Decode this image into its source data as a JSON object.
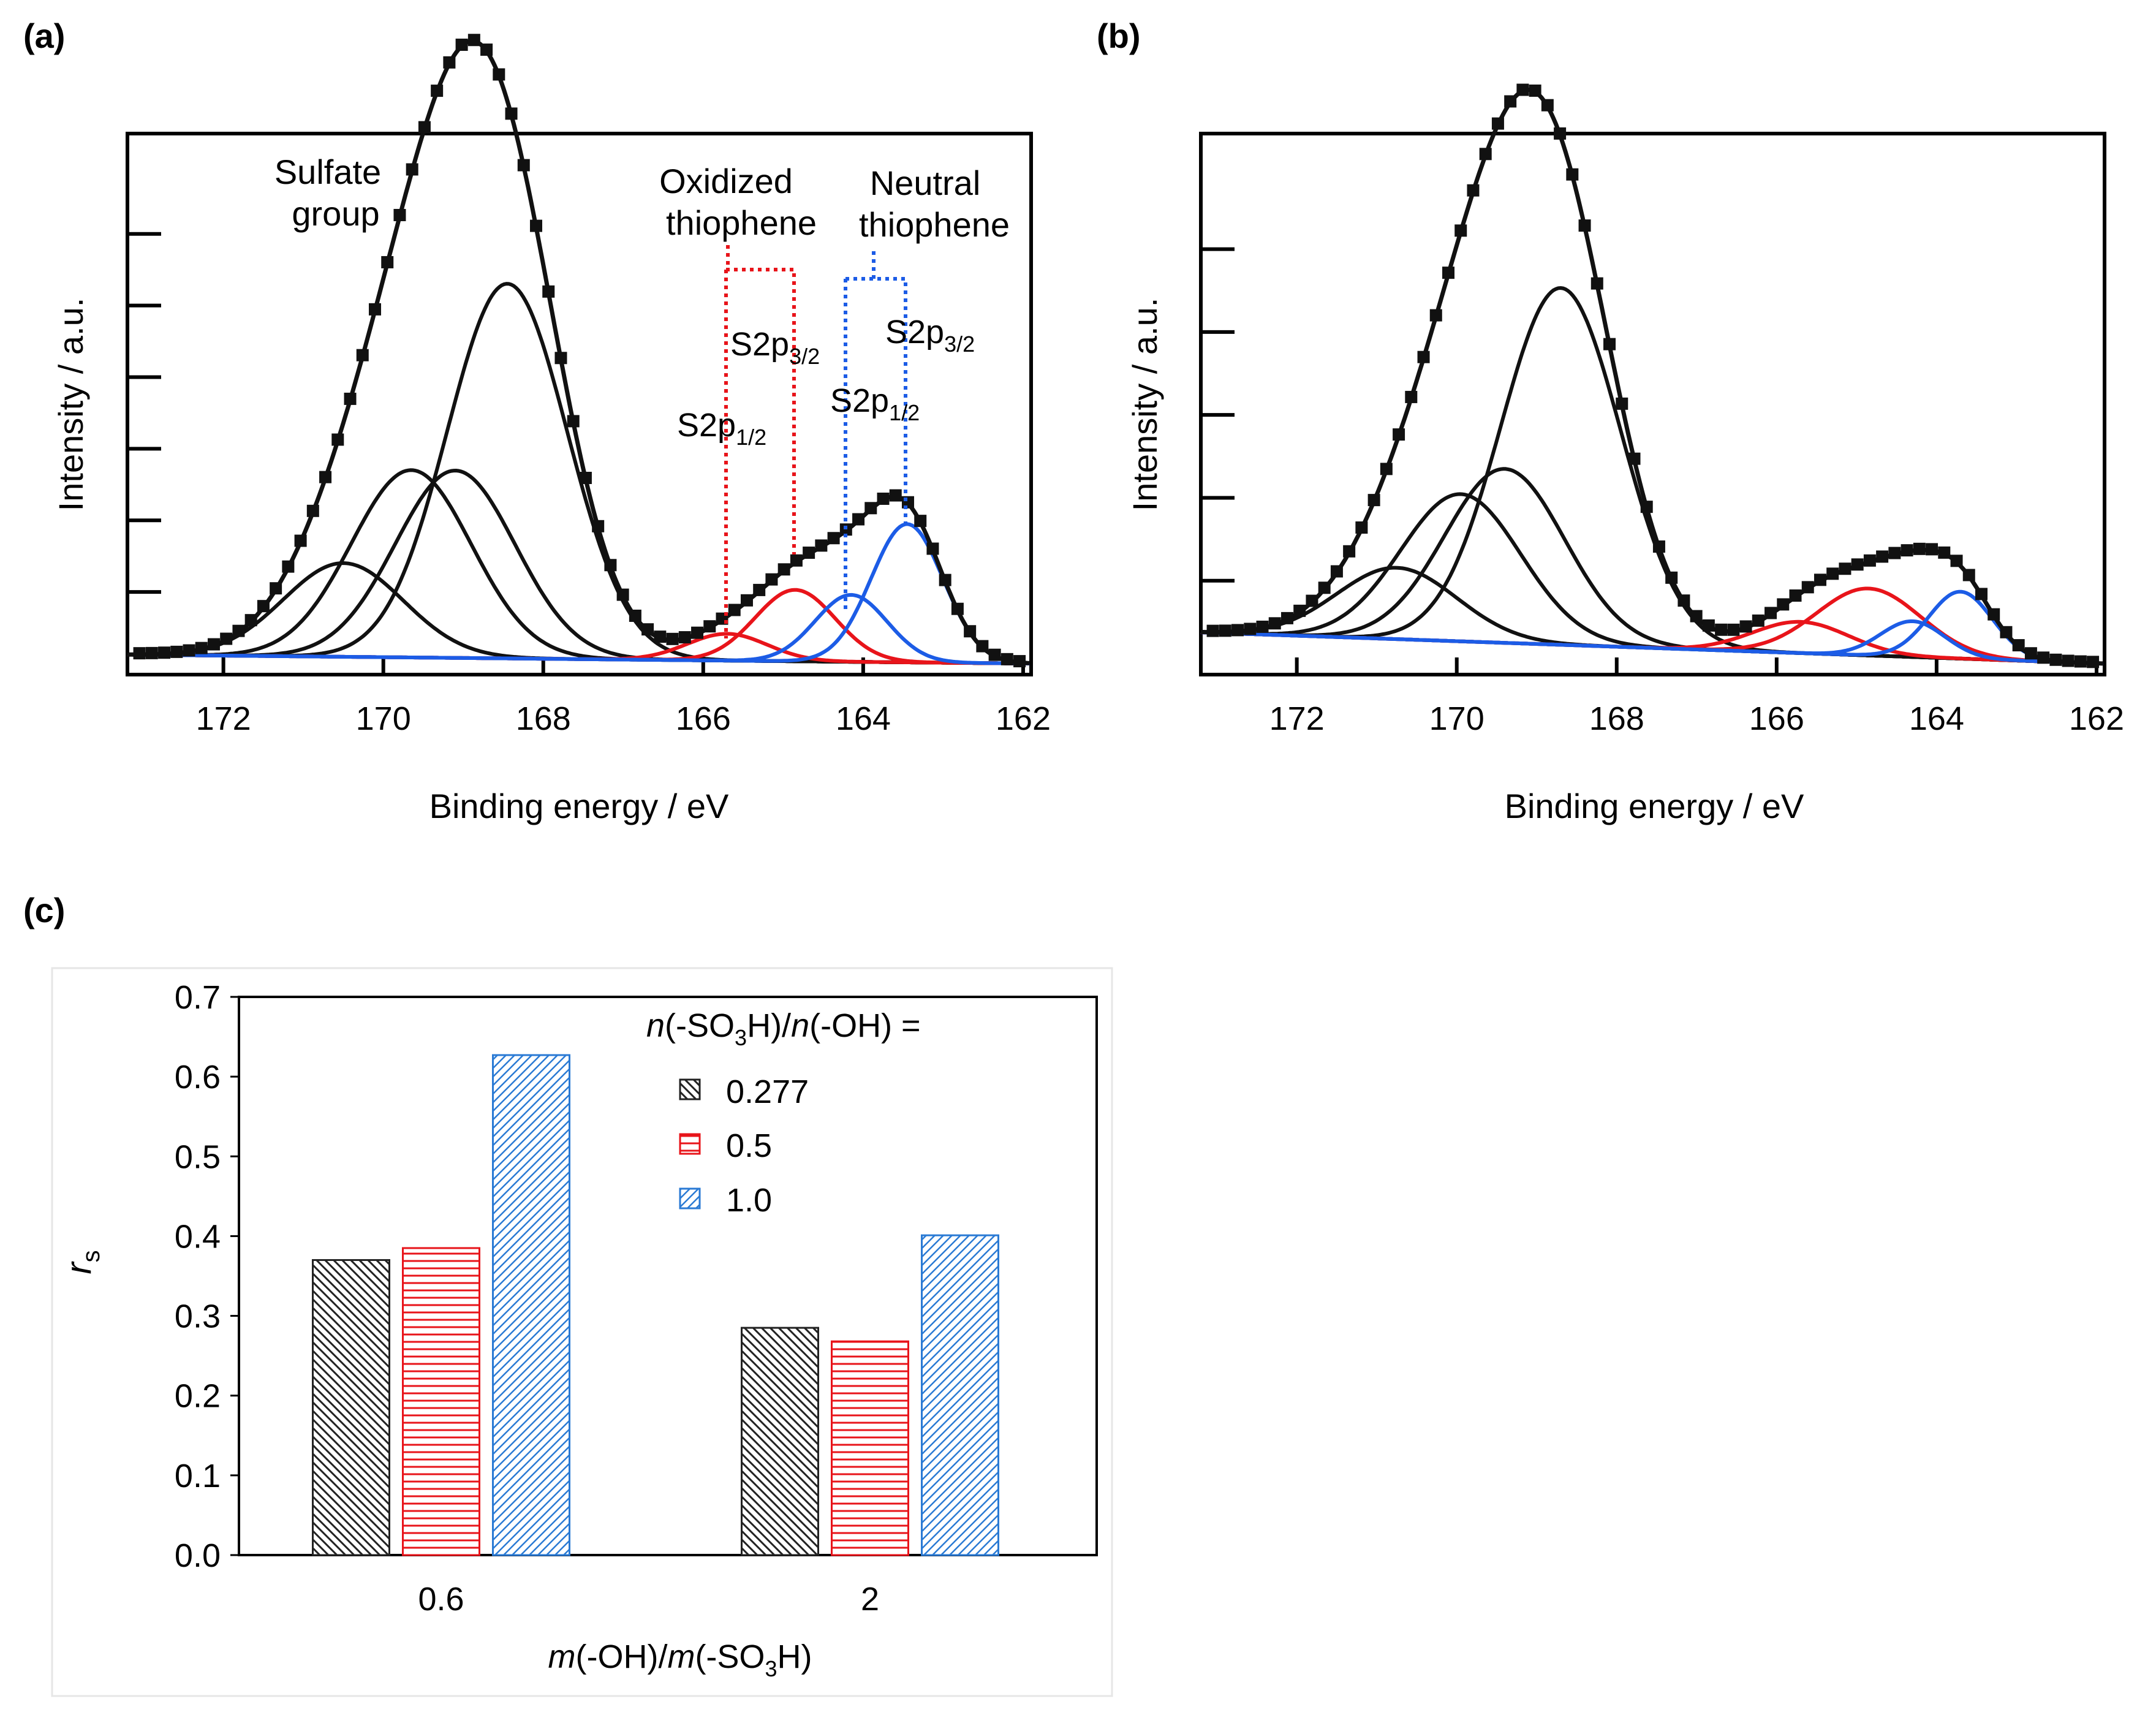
{
  "figure": {
    "panel_labels": {
      "a": "(a)",
      "b": "(b)",
      "c": "(c)"
    }
  },
  "colors": {
    "black": "#111111",
    "red": "#e8141a",
    "blue": "#1c5ce6",
    "bar_black": "#222222",
    "bar_red": "#e8141a",
    "bar_blue": "#2a7ad4"
  },
  "chart_data": [
    {
      "id": "a",
      "type": "line",
      "title": "",
      "xlabel": "Binding energy / eV",
      "ylabel": "Intensity / a.u.",
      "xlim": [
        173.2,
        161.9
      ],
      "ylim": [
        0,
        1.18
      ],
      "x_ticks": [
        172,
        170,
        168,
        166,
        164,
        162
      ],
      "y_tick_count": 6,
      "annotations": {
        "sulfate_line1": "Sulfate",
        "sulfate_line2": "group",
        "oxidized_line1": "Oxidized",
        "oxidized_line2": "thiophene",
        "neutral_line1": "Neutral",
        "neutral_line2": "thiophene",
        "s2p_main": "S2p",
        "sub_half": "1/2",
        "sub_three_half": "3/2"
      },
      "baseline": {
        "x": [
          173.2,
          161.9
        ],
        "y": [
          0.02,
          0.0
        ]
      },
      "peaks": [
        {
          "name": "sulfate-1",
          "group": "sulfate",
          "center": 170.5,
          "height": 0.21,
          "sigma": 0.75
        },
        {
          "name": "sulfate-2",
          "group": "sulfate",
          "center": 169.65,
          "height": 0.42,
          "sigma": 0.75
        },
        {
          "name": "sulfate-3",
          "group": "sulfate",
          "center": 169.1,
          "height": 0.42,
          "sigma": 0.75
        },
        {
          "name": "sulfate-4",
          "group": "sulfate",
          "center": 168.45,
          "height": 0.84,
          "sigma": 0.75
        },
        {
          "name": "oxidized-s2p1-2",
          "group": "oxidized",
          "center": 165.7,
          "height": 0.06,
          "sigma": 0.5
        },
        {
          "name": "oxidized-s2p3-2",
          "group": "oxidized",
          "center": 164.85,
          "height": 0.16,
          "sigma": 0.5
        },
        {
          "name": "neutral-s2p1-2",
          "group": "neutral",
          "center": 164.15,
          "height": 0.15,
          "sigma": 0.45
        },
        {
          "name": "neutral-s2p3-2",
          "group": "neutral",
          "center": 163.45,
          "height": 0.31,
          "sigma": 0.45
        }
      ]
    },
    {
      "id": "b",
      "type": "line",
      "title": "",
      "xlabel": "Binding energy / eV",
      "ylabel": "Intensity / a.u.",
      "xlim": [
        173.2,
        161.9
      ],
      "ylim": [
        0,
        1.18
      ],
      "x_ticks": [
        172,
        170,
        168,
        166,
        164,
        162
      ],
      "y_tick_count": 5,
      "baseline": {
        "x": [
          173.2,
          161.9
        ],
        "y": [
          0.07,
          0.0
        ]
      },
      "peaks": [
        {
          "name": "sulfate-1",
          "group": "sulfate",
          "center": 170.75,
          "height": 0.16,
          "sigma": 0.75
        },
        {
          "name": "sulfate-2",
          "group": "sulfate",
          "center": 169.95,
          "height": 0.33,
          "sigma": 0.75
        },
        {
          "name": "sulfate-3",
          "group": "sulfate",
          "center": 169.4,
          "height": 0.39,
          "sigma": 0.75
        },
        {
          "name": "sulfate-4",
          "group": "sulfate",
          "center": 168.7,
          "height": 0.8,
          "sigma": 0.75
        },
        {
          "name": "oxidized-s2p1-2",
          "group": "oxidized",
          "center": 165.7,
          "height": 0.07,
          "sigma": 0.6
        },
        {
          "name": "oxidized-s2p3-2",
          "group": "oxidized",
          "center": 164.85,
          "height": 0.15,
          "sigma": 0.65
        },
        {
          "name": "neutral-s2p1-2",
          "group": "neutral",
          "center": 164.3,
          "height": 0.08,
          "sigma": 0.4
        },
        {
          "name": "neutral-s2p3-2",
          "group": "neutral",
          "center": 163.7,
          "height": 0.15,
          "sigma": 0.4
        }
      ]
    },
    {
      "id": "c",
      "type": "bar",
      "title": "",
      "xlabel_prefix": "m",
      "xlabel_mid": "(-OH)/",
      "xlabel_m2": "m",
      "xlabel_mid2": "(-SO",
      "xlabel_sub": "3",
      "xlabel_end": "H)",
      "ylabel_main": "r",
      "ylabel_sub": "s",
      "ylim": [
        0,
        0.7
      ],
      "y_ticks": [
        "0.0",
        "0.1",
        "0.2",
        "0.3",
        "0.4",
        "0.5",
        "0.6",
        "0.7"
      ],
      "categories": [
        "0.6",
        "2"
      ],
      "legend_title": {
        "n1": "n",
        "mid": "(-SO",
        "sub": "3",
        "mid2": "H)/",
        "n2": "n",
        "end": "(-OH) ="
      },
      "series": [
        {
          "name": "0.277",
          "values": [
            0.37,
            0.285
          ],
          "pattern": "black"
        },
        {
          "name": "0.5",
          "values": [
            0.385,
            0.268
          ],
          "pattern": "red"
        },
        {
          "name": "1.0",
          "values": [
            0.627,
            0.401
          ],
          "pattern": "blue"
        }
      ]
    }
  ]
}
